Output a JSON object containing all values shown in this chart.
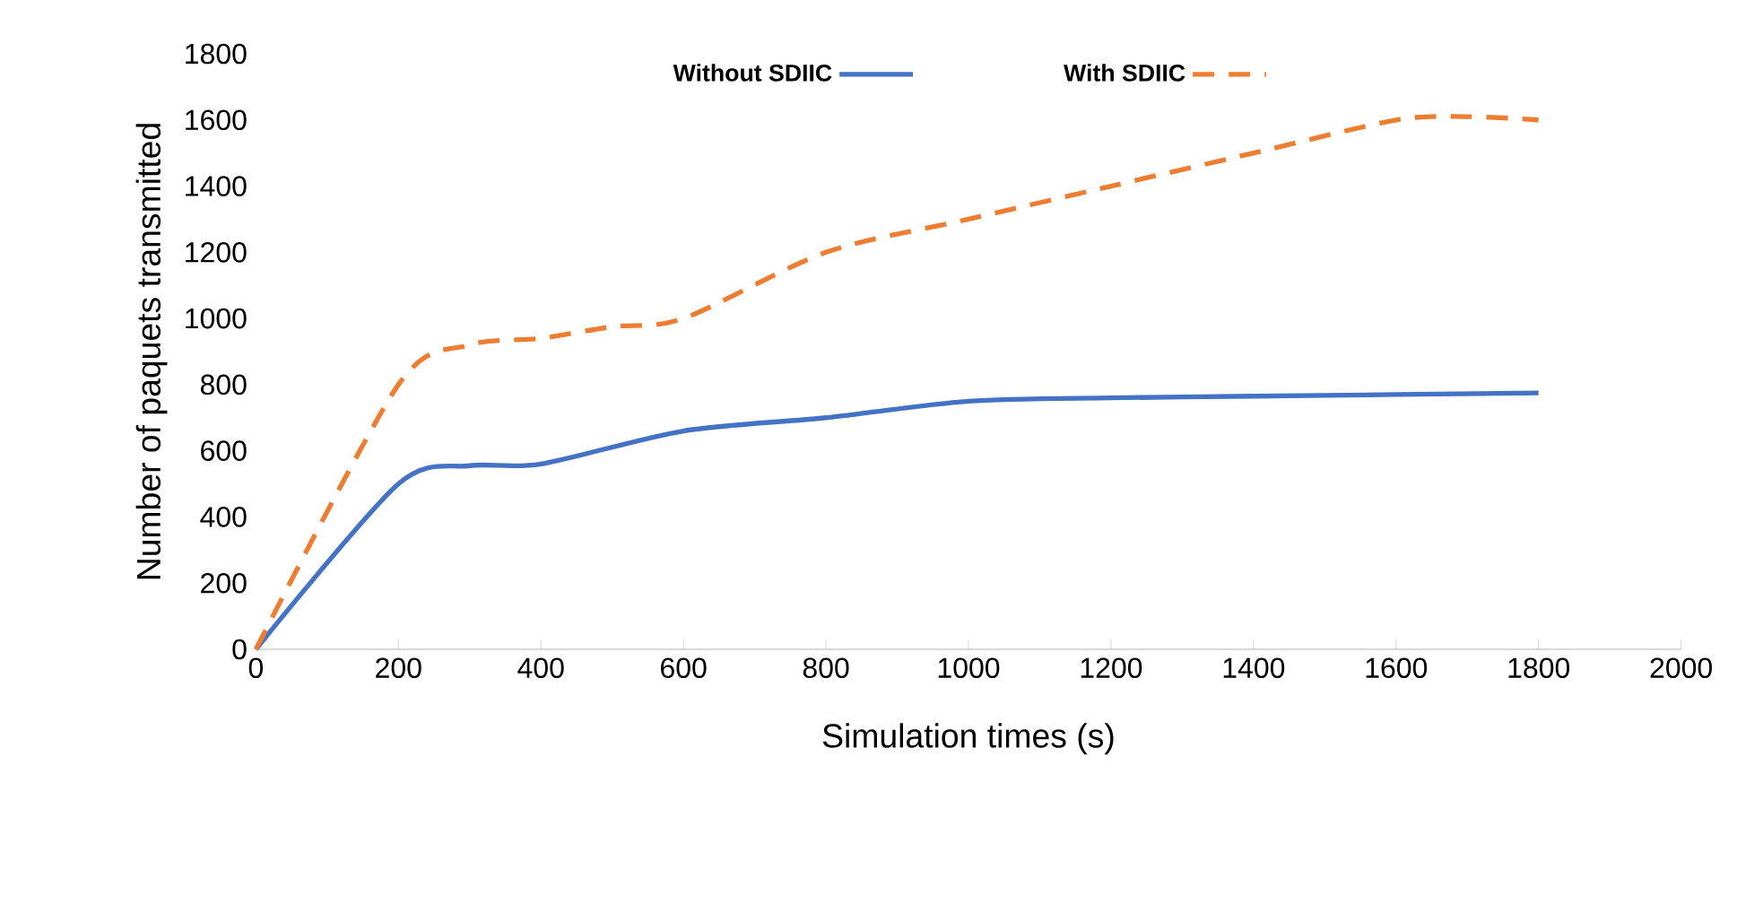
{
  "chart_data": {
    "type": "line",
    "xlabel": "Simulation times (s)",
    "ylabel": "Number of paquets transmitted",
    "xlim": [
      0,
      2000
    ],
    "xticks": [
      0,
      200,
      400,
      600,
      800,
      1000,
      1200,
      1400,
      1600,
      1800,
      2000
    ],
    "ylim": [
      0,
      1800
    ],
    "yticks": [
      0,
      200,
      400,
      600,
      800,
      1000,
      1200,
      1400,
      1600,
      1800
    ],
    "legend": "top",
    "grid": false,
    "marker": "none",
    "series": [
      {
        "name": "Without SDIIC",
        "color": "#4472c4",
        "line_style": "solid",
        "x": [
          0,
          200,
          300,
          400,
          600,
          800,
          1000,
          1200,
          1400,
          1600,
          1800
        ],
        "values": [
          0,
          500,
          555,
          560,
          660,
          700,
          750,
          760,
          765,
          770,
          775
        ]
      },
      {
        "name": "With SDIIC",
        "color": "#ed7d31",
        "line_style": "dashed",
        "x": [
          0,
          200,
          300,
          400,
          500,
          600,
          800,
          1000,
          1200,
          1400,
          1600,
          1700,
          1800
        ],
        "values": [
          0,
          800,
          920,
          940,
          975,
          1000,
          1200,
          1300,
          1400,
          1500,
          1600,
          1610,
          1600
        ]
      }
    ]
  }
}
